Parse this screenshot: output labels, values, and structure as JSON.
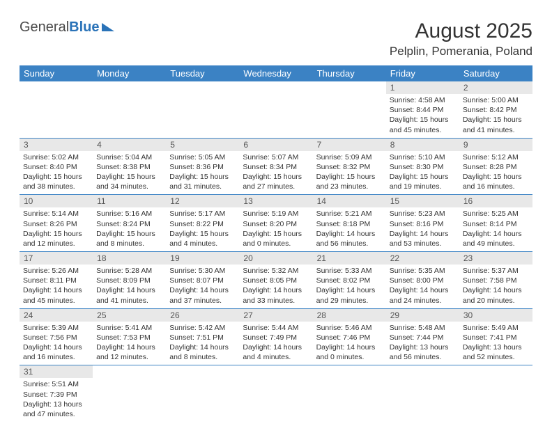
{
  "logo": {
    "part1": "General",
    "part2": "Blue"
  },
  "title": "August 2025",
  "location": "Pelplin, Pomerania, Poland",
  "colors": {
    "header_bg": "#3b82c4",
    "header_text": "#ffffff",
    "daynum_bg": "#e8e8e8",
    "row_divider": "#3b82c4",
    "logo_blue": "#2a73b8",
    "text": "#333333"
  },
  "typography": {
    "title_fontsize": 30,
    "location_fontsize": 17,
    "dayheader_fontsize": 13,
    "daynum_fontsize": 12,
    "detail_fontsize": 10.5
  },
  "day_headers": [
    "Sunday",
    "Monday",
    "Tuesday",
    "Wednesday",
    "Thursday",
    "Friday",
    "Saturday"
  ],
  "weeks": [
    [
      null,
      null,
      null,
      null,
      null,
      {
        "n": "1",
        "sr": "4:58 AM",
        "ss": "8:44 PM",
        "dl": "15 hours and 45 minutes."
      },
      {
        "n": "2",
        "sr": "5:00 AM",
        "ss": "8:42 PM",
        "dl": "15 hours and 41 minutes."
      }
    ],
    [
      {
        "n": "3",
        "sr": "5:02 AM",
        "ss": "8:40 PM",
        "dl": "15 hours and 38 minutes."
      },
      {
        "n": "4",
        "sr": "5:04 AM",
        "ss": "8:38 PM",
        "dl": "15 hours and 34 minutes."
      },
      {
        "n": "5",
        "sr": "5:05 AM",
        "ss": "8:36 PM",
        "dl": "15 hours and 31 minutes."
      },
      {
        "n": "6",
        "sr": "5:07 AM",
        "ss": "8:34 PM",
        "dl": "15 hours and 27 minutes."
      },
      {
        "n": "7",
        "sr": "5:09 AM",
        "ss": "8:32 PM",
        "dl": "15 hours and 23 minutes."
      },
      {
        "n": "8",
        "sr": "5:10 AM",
        "ss": "8:30 PM",
        "dl": "15 hours and 19 minutes."
      },
      {
        "n": "9",
        "sr": "5:12 AM",
        "ss": "8:28 PM",
        "dl": "15 hours and 16 minutes."
      }
    ],
    [
      {
        "n": "10",
        "sr": "5:14 AM",
        "ss": "8:26 PM",
        "dl": "15 hours and 12 minutes."
      },
      {
        "n": "11",
        "sr": "5:16 AM",
        "ss": "8:24 PM",
        "dl": "15 hours and 8 minutes."
      },
      {
        "n": "12",
        "sr": "5:17 AM",
        "ss": "8:22 PM",
        "dl": "15 hours and 4 minutes."
      },
      {
        "n": "13",
        "sr": "5:19 AM",
        "ss": "8:20 PM",
        "dl": "15 hours and 0 minutes."
      },
      {
        "n": "14",
        "sr": "5:21 AM",
        "ss": "8:18 PM",
        "dl": "14 hours and 56 minutes."
      },
      {
        "n": "15",
        "sr": "5:23 AM",
        "ss": "8:16 PM",
        "dl": "14 hours and 53 minutes."
      },
      {
        "n": "16",
        "sr": "5:25 AM",
        "ss": "8:14 PM",
        "dl": "14 hours and 49 minutes."
      }
    ],
    [
      {
        "n": "17",
        "sr": "5:26 AM",
        "ss": "8:11 PM",
        "dl": "14 hours and 45 minutes."
      },
      {
        "n": "18",
        "sr": "5:28 AM",
        "ss": "8:09 PM",
        "dl": "14 hours and 41 minutes."
      },
      {
        "n": "19",
        "sr": "5:30 AM",
        "ss": "8:07 PM",
        "dl": "14 hours and 37 minutes."
      },
      {
        "n": "20",
        "sr": "5:32 AM",
        "ss": "8:05 PM",
        "dl": "14 hours and 33 minutes."
      },
      {
        "n": "21",
        "sr": "5:33 AM",
        "ss": "8:02 PM",
        "dl": "14 hours and 29 minutes."
      },
      {
        "n": "22",
        "sr": "5:35 AM",
        "ss": "8:00 PM",
        "dl": "14 hours and 24 minutes."
      },
      {
        "n": "23",
        "sr": "5:37 AM",
        "ss": "7:58 PM",
        "dl": "14 hours and 20 minutes."
      }
    ],
    [
      {
        "n": "24",
        "sr": "5:39 AM",
        "ss": "7:56 PM",
        "dl": "14 hours and 16 minutes."
      },
      {
        "n": "25",
        "sr": "5:41 AM",
        "ss": "7:53 PM",
        "dl": "14 hours and 12 minutes."
      },
      {
        "n": "26",
        "sr": "5:42 AM",
        "ss": "7:51 PM",
        "dl": "14 hours and 8 minutes."
      },
      {
        "n": "27",
        "sr": "5:44 AM",
        "ss": "7:49 PM",
        "dl": "14 hours and 4 minutes."
      },
      {
        "n": "28",
        "sr": "5:46 AM",
        "ss": "7:46 PM",
        "dl": "14 hours and 0 minutes."
      },
      {
        "n": "29",
        "sr": "5:48 AM",
        "ss": "7:44 PM",
        "dl": "13 hours and 56 minutes."
      },
      {
        "n": "30",
        "sr": "5:49 AM",
        "ss": "7:41 PM",
        "dl": "13 hours and 52 minutes."
      }
    ],
    [
      {
        "n": "31",
        "sr": "5:51 AM",
        "ss": "7:39 PM",
        "dl": "13 hours and 47 minutes."
      },
      null,
      null,
      null,
      null,
      null,
      null
    ]
  ],
  "labels": {
    "sunrise": "Sunrise:",
    "sunset": "Sunset:",
    "daylight": "Daylight:"
  }
}
